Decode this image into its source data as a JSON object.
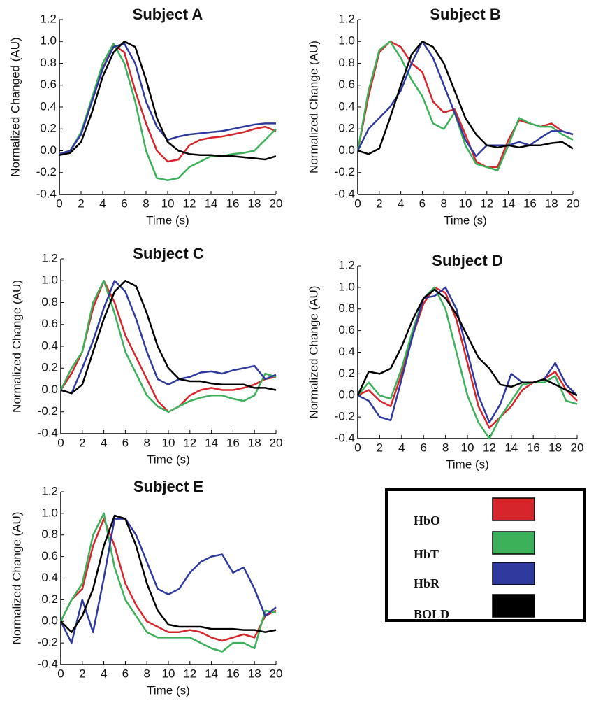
{
  "chart_data": [
    {
      "type": "line",
      "title": "Subject A",
      "xlabel": "Time (s)",
      "ylabel": "Normalized Changed (AU)",
      "x": [
        0,
        1,
        2,
        3,
        4,
        5,
        6,
        7,
        8,
        9,
        10,
        11,
        12,
        13,
        14,
        15,
        16,
        17,
        18,
        19,
        20
      ],
      "xlim": [
        0,
        20
      ],
      "xticks": [
        0,
        2,
        4,
        6,
        8,
        10,
        12,
        14,
        16,
        18,
        20
      ],
      "ylim": [
        -0.4,
        1.2
      ],
      "yticks": [
        -0.4,
        -0.2,
        {
          "value": 0,
          "label": "0.0"
        },
        0.2,
        0.4,
        0.6,
        0.8,
        {
          "value": 1,
          "label": "1.0"
        },
        1.2
      ],
      "series": [
        {
          "name": "HbO",
          "color": "#d7262b",
          "values": [
            -0.03,
            0.0,
            0.15,
            0.45,
            0.75,
            0.97,
            0.9,
            0.55,
            0.25,
            0.0,
            -0.1,
            -0.08,
            0.05,
            0.1,
            0.12,
            0.13,
            0.15,
            0.17,
            0.2,
            0.22,
            0.18
          ]
        },
        {
          "name": "HbT",
          "color": "#3cb15a",
          "values": [
            -0.03,
            0.0,
            0.17,
            0.48,
            0.8,
            0.98,
            0.8,
            0.45,
            0.0,
            -0.25,
            -0.27,
            -0.25,
            -0.15,
            -0.1,
            -0.05,
            -0.05,
            -0.03,
            -0.02,
            0.0,
            0.1,
            0.2
          ]
        },
        {
          "name": "HbR",
          "color": "#2f3a9f",
          "values": [
            -0.03,
            0.0,
            0.15,
            0.45,
            0.75,
            0.95,
            0.98,
            0.8,
            0.45,
            0.22,
            0.1,
            0.13,
            0.15,
            0.16,
            0.17,
            0.18,
            0.2,
            0.22,
            0.24,
            0.25,
            0.25
          ]
        },
        {
          "name": "BOLD",
          "color": "#000000",
          "values": [
            -0.04,
            -0.02,
            0.08,
            0.35,
            0.68,
            0.9,
            1.0,
            0.95,
            0.65,
            0.3,
            0.08,
            0.0,
            -0.03,
            -0.04,
            -0.04,
            -0.05,
            -0.05,
            -0.06,
            -0.07,
            -0.08,
            -0.05
          ]
        }
      ]
    },
    {
      "type": "line",
      "title": "Subject B",
      "xlabel": "Time (s)",
      "ylabel": "Normalized Change (AU)",
      "x": [
        0,
        1,
        2,
        3,
        4,
        5,
        6,
        7,
        8,
        9,
        10,
        11,
        12,
        13,
        14,
        15,
        16,
        17,
        18,
        19,
        20
      ],
      "xlim": [
        0,
        20
      ],
      "xticks": [
        0,
        2,
        4,
        6,
        8,
        10,
        12,
        14,
        16,
        18,
        20
      ],
      "ylim": [
        -0.4,
        1.2
      ],
      "yticks": [
        -0.4,
        -0.2,
        {
          "value": 0,
          "label": "0.0"
        },
        0.2,
        0.4,
        0.6,
        0.8,
        {
          "value": 1,
          "label": "1.0"
        },
        1.2
      ],
      "series": [
        {
          "name": "HbO",
          "color": "#d7262b",
          "values": [
            0,
            0.5,
            0.9,
            1.0,
            0.95,
            0.8,
            0.72,
            0.45,
            0.35,
            0.38,
            0.15,
            -0.1,
            -0.15,
            -0.15,
            0.1,
            0.28,
            0.25,
            0.22,
            0.25,
            0.18,
            0.15
          ]
        },
        {
          "name": "HbT",
          "color": "#3cb15a",
          "values": [
            0,
            0.55,
            0.92,
            1.0,
            0.85,
            0.65,
            0.5,
            0.25,
            0.2,
            0.35,
            0.05,
            -0.12,
            -0.15,
            -0.18,
            0.05,
            0.3,
            0.25,
            0.22,
            0.22,
            0.15,
            0.1
          ]
        },
        {
          "name": "HbR",
          "color": "#2f3a9f",
          "values": [
            0,
            0.2,
            0.3,
            0.4,
            0.55,
            0.8,
            1.0,
            0.85,
            0.6,
            0.35,
            0.1,
            -0.05,
            0.05,
            0.05,
            0.05,
            0.08,
            0.05,
            0.12,
            0.18,
            0.18,
            0.15
          ]
        },
        {
          "name": "BOLD",
          "color": "#000000",
          "values": [
            0,
            -0.03,
            0.02,
            0.3,
            0.6,
            0.88,
            1.0,
            0.95,
            0.8,
            0.55,
            0.3,
            0.15,
            0.05,
            0.03,
            0.05,
            0.03,
            0.05,
            0.05,
            0.07,
            0.08,
            0.02
          ]
        }
      ]
    },
    {
      "type": "line",
      "title": "Subject C",
      "xlabel": "Time (s)",
      "ylabel": "Normalized Change (AU)",
      "x": [
        0,
        1,
        2,
        3,
        4,
        5,
        6,
        7,
        8,
        9,
        10,
        11,
        12,
        13,
        14,
        15,
        16,
        17,
        18,
        19,
        20
      ],
      "xlim": [
        0,
        20
      ],
      "xticks": [
        0,
        2,
        4,
        6,
        8,
        10,
        12,
        14,
        16,
        18,
        20
      ],
      "ylim": [
        -0.4,
        1.2
      ],
      "yticks": [
        -0.4,
        -0.2,
        {
          "value": 0,
          "label": "0.0"
        },
        0.2,
        0.4,
        0.6,
        0.8,
        {
          "value": 1,
          "label": "1.0"
        },
        1.2
      ],
      "series": [
        {
          "name": "HbO",
          "color": "#d7262b",
          "values": [
            0,
            0.15,
            0.35,
            0.75,
            1.0,
            0.8,
            0.5,
            0.3,
            0.1,
            -0.1,
            -0.2,
            -0.15,
            -0.05,
            0.0,
            0.02,
            0.0,
            0.0,
            0.02,
            0.05,
            0.1,
            0.12
          ]
        },
        {
          "name": "HbT",
          "color": "#3cb15a",
          "values": [
            0,
            0.2,
            0.35,
            0.8,
            1.0,
            0.7,
            0.35,
            0.15,
            -0.05,
            -0.15,
            -0.2,
            -0.15,
            -0.1,
            -0.07,
            -0.05,
            -0.05,
            -0.08,
            -0.1,
            -0.05,
            0.15,
            0.12
          ]
        },
        {
          "name": "HbR",
          "color": "#2f3a9f",
          "values": [
            0,
            -0.03,
            0.2,
            0.45,
            0.75,
            1.0,
            0.9,
            0.65,
            0.35,
            0.1,
            0.05,
            0.1,
            0.12,
            0.16,
            0.17,
            0.15,
            0.18,
            0.2,
            0.22,
            0.1,
            0.14
          ]
        },
        {
          "name": "BOLD",
          "color": "#000000",
          "values": [
            0,
            -0.03,
            0.05,
            0.35,
            0.65,
            0.9,
            1.0,
            0.95,
            0.7,
            0.4,
            0.2,
            0.1,
            0.08,
            0.08,
            0.06,
            0.05,
            0.05,
            0.05,
            0.02,
            0.02,
            0.0
          ]
        }
      ]
    },
    {
      "type": "line",
      "title": "Subject D",
      "xlabel": "Time (s)",
      "ylabel": "Normalized Change (AU)",
      "x": [
        0,
        1,
        2,
        3,
        4,
        5,
        6,
        7,
        8,
        9,
        10,
        11,
        12,
        13,
        14,
        15,
        16,
        17,
        18,
        19,
        20
      ],
      "xlim": [
        0,
        20
      ],
      "xticks": [
        0,
        2,
        4,
        6,
        8,
        10,
        12,
        14,
        16,
        18,
        20
      ],
      "ylim": [
        -0.4,
        1.2
      ],
      "yticks": [
        -0.4,
        -0.2,
        {
          "value": 0,
          "label": "0.0"
        },
        0.2,
        0.4,
        0.6,
        0.8,
        {
          "value": 1,
          "label": "1.0"
        },
        1.2
      ],
      "series": [
        {
          "name": "HbO",
          "color": "#d7262b",
          "values": [
            0,
            0.05,
            -0.05,
            -0.1,
            0.2,
            0.55,
            0.85,
            1.0,
            0.95,
            0.7,
            0.3,
            -0.1,
            -0.3,
            -0.2,
            -0.1,
            0.05,
            0.12,
            0.15,
            0.22,
            0.05,
            -0.05
          ]
        },
        {
          "name": "HbT",
          "color": "#3cb15a",
          "values": [
            0,
            0.12,
            0.0,
            -0.03,
            0.25,
            0.6,
            0.9,
            1.0,
            0.8,
            0.4,
            0.0,
            -0.25,
            -0.4,
            -0.2,
            -0.05,
            0.1,
            0.12,
            0.12,
            0.18,
            -0.05,
            -0.08
          ]
        },
        {
          "name": "HbR",
          "color": "#2f3a9f",
          "values": [
            0,
            -0.05,
            -0.2,
            -0.23,
            0.15,
            0.55,
            0.9,
            0.92,
            1.0,
            0.8,
            0.4,
            0.0,
            -0.25,
            -0.08,
            0.2,
            0.12,
            0.12,
            0.15,
            0.3,
            0.1,
            0.0
          ]
        },
        {
          "name": "BOLD",
          "color": "#000000",
          "values": [
            0,
            0.22,
            0.2,
            0.25,
            0.45,
            0.7,
            0.9,
            0.98,
            0.9,
            0.75,
            0.55,
            0.35,
            0.25,
            0.1,
            0.08,
            0.12,
            0.12,
            0.15,
            0.1,
            0.05,
            0.0
          ]
        }
      ]
    },
    {
      "type": "line",
      "title": "Subject E",
      "xlabel": "Time (s)",
      "ylabel": "Normalized Change (AU)",
      "x": [
        0,
        1,
        2,
        3,
        4,
        5,
        6,
        7,
        8,
        9,
        10,
        11,
        12,
        13,
        14,
        15,
        16,
        17,
        18,
        19,
        20
      ],
      "xlim": [
        0,
        20
      ],
      "xticks": [
        0,
        2,
        4,
        6,
        8,
        10,
        12,
        14,
        16,
        18,
        20
      ],
      "ylim": [
        -0.4,
        1.2
      ],
      "yticks": [
        -0.4,
        -0.2,
        {
          "value": 0,
          "label": "0.0"
        },
        0.2,
        0.4,
        0.6,
        0.8,
        {
          "value": 1,
          "label": "1.0"
        },
        1.2
      ],
      "series": [
        {
          "name": "HbO",
          "color": "#d7262b",
          "values": [
            0,
            0.2,
            0.3,
            0.7,
            0.95,
            0.7,
            0.35,
            0.15,
            0.0,
            -0.05,
            -0.1,
            -0.1,
            -0.08,
            -0.1,
            -0.15,
            -0.18,
            -0.15,
            -0.12,
            -0.15,
            0.05,
            0.1
          ]
        },
        {
          "name": "HbT",
          "color": "#3cb15a",
          "values": [
            0,
            0.2,
            0.35,
            0.8,
            1.0,
            0.5,
            0.2,
            0.05,
            -0.1,
            -0.15,
            -0.15,
            -0.15,
            -0.15,
            -0.2,
            -0.25,
            -0.28,
            -0.2,
            -0.2,
            -0.25,
            0.1,
            0.08
          ]
        },
        {
          "name": "HbR",
          "color": "#2f3a9f",
          "values": [
            0,
            -0.2,
            0.2,
            -0.1,
            0.4,
            0.95,
            0.95,
            0.8,
            0.55,
            0.3,
            0.25,
            0.3,
            0.45,
            0.55,
            0.6,
            0.62,
            0.45,
            0.5,
            0.3,
            0.05,
            0.13
          ]
        },
        {
          "name": "BOLD",
          "color": "#000000",
          "values": [
            0,
            -0.1,
            0.05,
            0.3,
            0.7,
            0.98,
            0.95,
            0.7,
            0.35,
            0.1,
            -0.03,
            -0.05,
            -0.05,
            -0.05,
            -0.07,
            -0.07,
            -0.07,
            -0.08,
            -0.08,
            -0.1,
            -0.08
          ]
        }
      ]
    }
  ]
}
